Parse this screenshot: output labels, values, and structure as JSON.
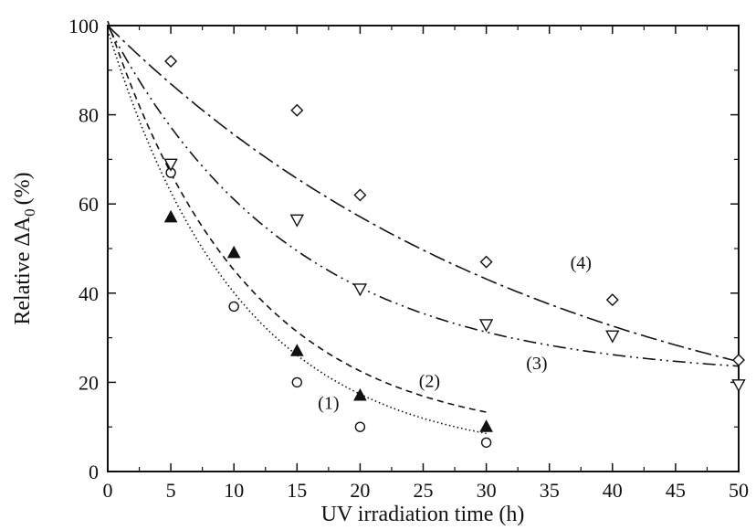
{
  "chart_data": {
    "type": "scatter",
    "xlabel": "UV irradiation time (h)",
    "ylabel": "Relative ΔA",
    "ylabel_subscript": "0",
    "ylabel_unit": "(%)",
    "xlim": [
      0,
      50
    ],
    "ylim": [
      0,
      100
    ],
    "x_ticks": [
      0,
      5,
      10,
      15,
      20,
      25,
      30,
      35,
      40,
      45,
      50
    ],
    "y_ticks": [
      0,
      20,
      40,
      60,
      80,
      100
    ],
    "grid": false,
    "legend": "none",
    "series": [
      {
        "name": "(1)",
        "marker": "circle",
        "line_style": "dotted",
        "fit": {
          "a": 96,
          "k": 0.095,
          "c": 3,
          "x_end": 30
        },
        "points": [
          [
            5,
            67
          ],
          [
            10,
            37
          ],
          [
            15,
            20
          ],
          [
            20,
            10
          ],
          [
            30,
            6.5
          ]
        ]
      },
      {
        "name": "(2)",
        "marker": "triangle-up-filled",
        "line_style": "dashed",
        "fit": {
          "a": 94,
          "k": 0.09,
          "c": 7,
          "x_end": 30
        },
        "points": [
          [
            5,
            57
          ],
          [
            10,
            49
          ],
          [
            15,
            27
          ],
          [
            20,
            17
          ],
          [
            30,
            10
          ]
        ]
      },
      {
        "name": "(3)",
        "marker": "triangle-down",
        "line_style": "dash-dot-dot",
        "fit": {
          "a": 79,
          "k": 0.068,
          "c": 21,
          "x_end": 50
        },
        "points": [
          [
            5,
            69
          ],
          [
            15,
            56.5
          ],
          [
            20,
            41
          ],
          [
            30,
            33
          ],
          [
            40,
            30.5
          ],
          [
            50,
            19.5
          ]
        ]
      },
      {
        "name": "(4)",
        "marker": "diamond",
        "line_style": "dash-dot",
        "fit": {
          "a": 100,
          "k": 0.028,
          "c": 0,
          "x_end": 50
        },
        "points": [
          [
            5,
            92
          ],
          [
            15,
            81
          ],
          [
            20,
            62
          ],
          [
            30,
            47
          ],
          [
            40,
            38.5
          ],
          [
            50,
            25
          ]
        ]
      }
    ],
    "annotations": [
      {
        "text": "(1)",
        "x": 17.5,
        "y": 14
      },
      {
        "text": "(2)",
        "x": 25.5,
        "y": 19
      },
      {
        "text": "(3)",
        "x": 34,
        "y": 23
      },
      {
        "text": "(4)",
        "x": 37.5,
        "y": 45.5
      }
    ]
  }
}
